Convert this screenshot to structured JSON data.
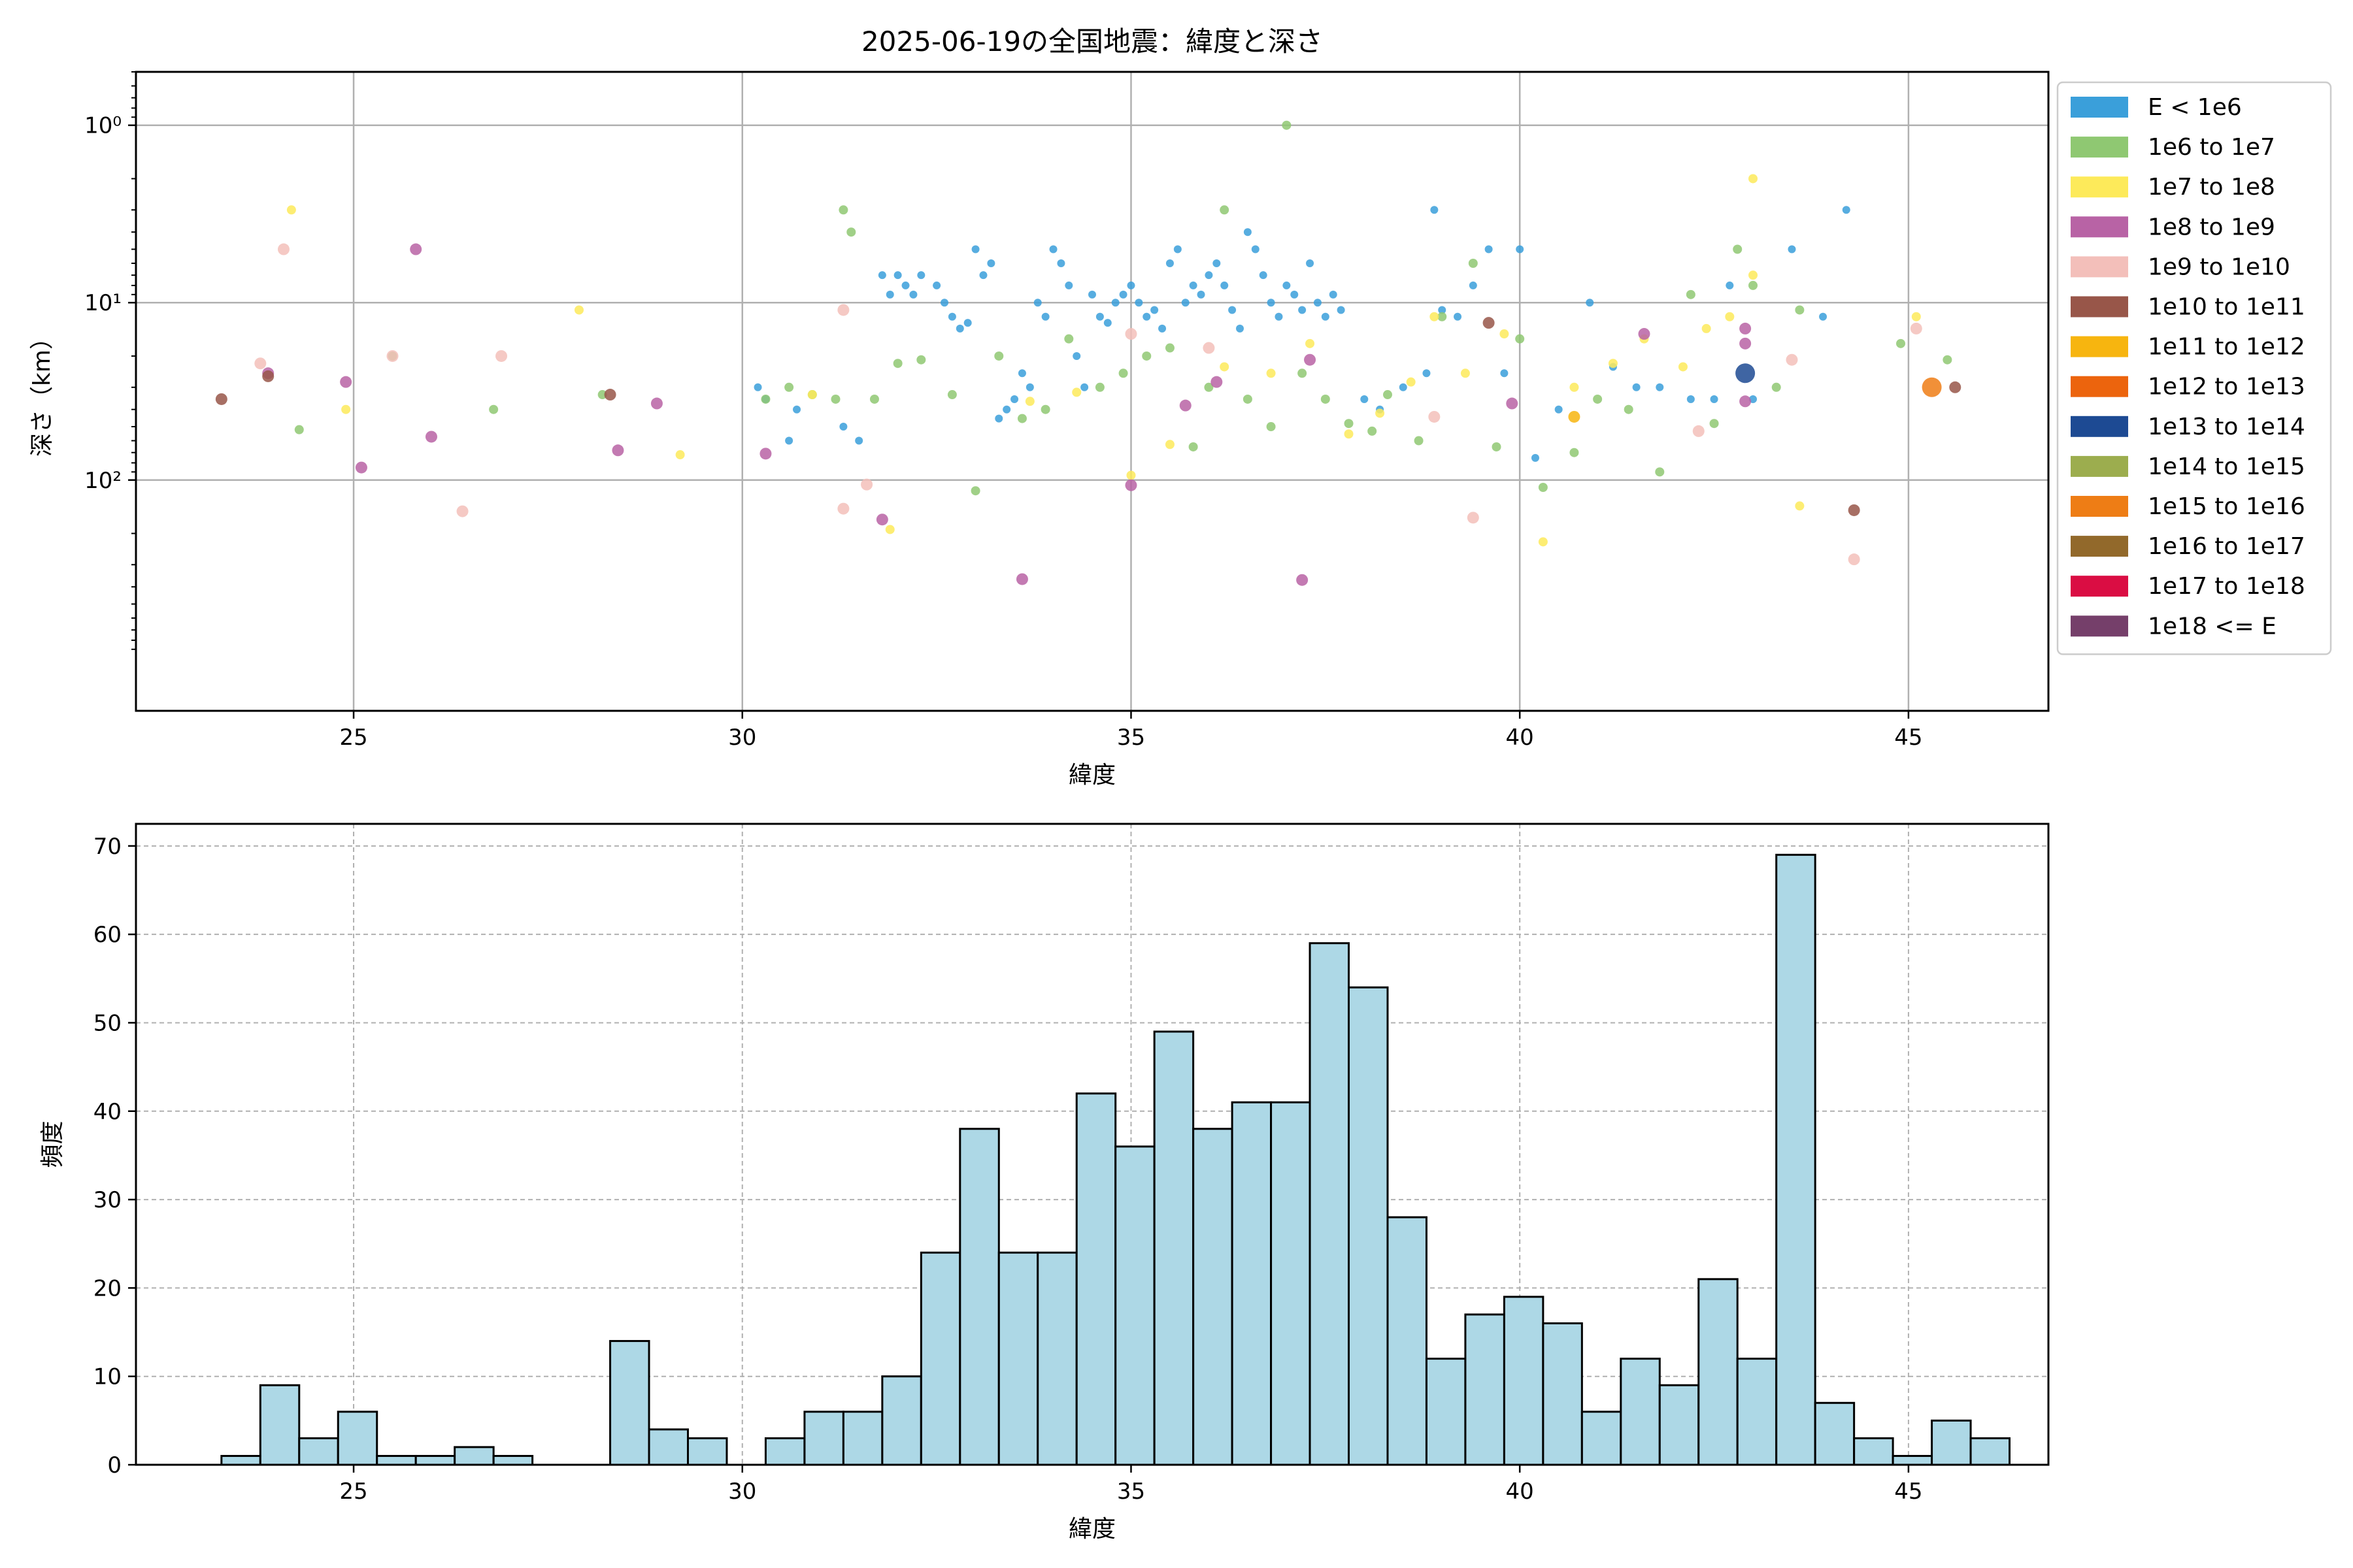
{
  "chart_data": [
    {
      "type": "scatter",
      "title": "2025-06-19の全国地震：緯度と深さ",
      "xlabel": "緯度",
      "ylabel": "深さ（km）",
      "xlim": [
        22.2,
        46.8
      ],
      "ylim": [
        2000,
        0.5
      ],
      "yscale": "log",
      "y_inverted": true,
      "grid": true,
      "legend_position": "outside-right",
      "xticks": [
        25,
        30,
        35,
        40,
        45
      ],
      "yticks": [
        {
          "value": 1,
          "label": "10⁰"
        },
        {
          "value": 10,
          "label": "10¹"
        },
        {
          "value": 100,
          "label": "10²"
        }
      ],
      "legend": [
        {
          "label": "E < 1e6",
          "color": "#3a9fda"
        },
        {
          "label": "1e6 to 1e7",
          "color": "#8fc872"
        },
        {
          "label": "1e7 to 1e8",
          "color": "#fdea5a"
        },
        {
          "label": "1e8 to 1e9",
          "color": "#b863a5"
        },
        {
          "label": "1e9 to 1e10",
          "color": "#f3bfba"
        },
        {
          "label": "1e10 to 1e11",
          "color": "#985649"
        },
        {
          "label": "1e11 to 1e12",
          "color": "#f7b50f"
        },
        {
          "label": "1e12 to 1e13",
          "color": "#ec640d"
        },
        {
          "label": "1e13 to 1e14",
          "color": "#1d4a93"
        },
        {
          "label": "1e14 to 1e15",
          "color": "#9cad4e"
        },
        {
          "label": "1e15 to 1e16",
          "color": "#ee7d15"
        },
        {
          "label": "1e16 to 1e17",
          "color": "#92692b"
        },
        {
          "label": "1e17 to 1e18",
          "color": "#da0d43"
        },
        {
          "label": "1e18 <= E",
          "color": "#753f6a"
        }
      ],
      "series": [
        {
          "name": "E < 1e6",
          "color": "#3a9fda",
          "points": [
            [
              30.2,
              30
            ],
            [
              30.3,
              35
            ],
            [
              30.6,
              60
            ],
            [
              30.7,
              40
            ],
            [
              31.3,
              50
            ],
            [
              31.5,
              60
            ],
            [
              31.8,
              7
            ],
            [
              31.9,
              9
            ],
            [
              32.0,
              7
            ],
            [
              32.1,
              8
            ],
            [
              32.2,
              9
            ],
            [
              32.3,
              7
            ],
            [
              32.5,
              8
            ],
            [
              32.6,
              10
            ],
            [
              32.7,
              12
            ],
            [
              32.8,
              14
            ],
            [
              32.9,
              13
            ],
            [
              33.0,
              5
            ],
            [
              33.1,
              7
            ],
            [
              33.2,
              6
            ],
            [
              33.3,
              45
            ],
            [
              33.4,
              40
            ],
            [
              33.5,
              35
            ],
            [
              33.6,
              25
            ],
            [
              33.7,
              30
            ],
            [
              33.8,
              10
            ],
            [
              33.9,
              12
            ],
            [
              34.0,
              5
            ],
            [
              34.1,
              6
            ],
            [
              34.2,
              8
            ],
            [
              34.3,
              20
            ],
            [
              34.4,
              30
            ],
            [
              34.5,
              9
            ],
            [
              34.6,
              12
            ],
            [
              34.7,
              13
            ],
            [
              34.8,
              10
            ],
            [
              34.9,
              9
            ],
            [
              35.0,
              8
            ],
            [
              35.1,
              10
            ],
            [
              35.2,
              12
            ],
            [
              35.3,
              11
            ],
            [
              35.4,
              14
            ],
            [
              35.5,
              6
            ],
            [
              35.6,
              5
            ],
            [
              35.7,
              10
            ],
            [
              35.8,
              8
            ],
            [
              35.9,
              9
            ],
            [
              36.0,
              7
            ],
            [
              36.1,
              6
            ],
            [
              36.2,
              8
            ],
            [
              36.3,
              11
            ],
            [
              36.4,
              14
            ],
            [
              36.5,
              4
            ],
            [
              36.6,
              5
            ],
            [
              36.7,
              7
            ],
            [
              36.8,
              10
            ],
            [
              36.9,
              12
            ],
            [
              37.0,
              8
            ],
            [
              37.1,
              9
            ],
            [
              37.2,
              11
            ],
            [
              37.3,
              6
            ],
            [
              37.4,
              10
            ],
            [
              37.5,
              12
            ],
            [
              37.6,
              9
            ],
            [
              37.7,
              11
            ],
            [
              38.0,
              35
            ],
            [
              38.2,
              40
            ],
            [
              38.5,
              30
            ],
            [
              38.8,
              25
            ],
            [
              38.9,
              3
            ],
            [
              39.0,
              11
            ],
            [
              39.2,
              12
            ],
            [
              39.4,
              8
            ],
            [
              39.6,
              5
            ],
            [
              39.8,
              25
            ],
            [
              40.0,
              5
            ],
            [
              40.2,
              75
            ],
            [
              40.5,
              40
            ],
            [
              40.9,
              10
            ],
            [
              41.2,
              23
            ],
            [
              41.5,
              30
            ],
            [
              41.8,
              30
            ],
            [
              42.2,
              35
            ],
            [
              42.5,
              35
            ],
            [
              42.7,
              8
            ],
            [
              43.0,
              35
            ],
            [
              43.5,
              5
            ],
            [
              43.9,
              12
            ],
            [
              44.2,
              3
            ]
          ]
        },
        {
          "name": "1e6 to 1e7",
          "color": "#8fc872",
          "points": [
            [
              24.3,
              52
            ],
            [
              25.5,
              20
            ],
            [
              26.8,
              40
            ],
            [
              28.2,
              33
            ],
            [
              30.3,
              35
            ],
            [
              30.6,
              30
            ],
            [
              30.9,
              33
            ],
            [
              31.2,
              35
            ],
            [
              31.3,
              3
            ],
            [
              31.4,
              4
            ],
            [
              31.7,
              35
            ],
            [
              32.0,
              22
            ],
            [
              32.3,
              21
            ],
            [
              32.7,
              33
            ],
            [
              33.0,
              115
            ],
            [
              33.3,
              20
            ],
            [
              33.6,
              45
            ],
            [
              33.9,
              40
            ],
            [
              34.2,
              16
            ],
            [
              34.6,
              30
            ],
            [
              34.9,
              25
            ],
            [
              35.2,
              20
            ],
            [
              35.5,
              18
            ],
            [
              35.8,
              65
            ],
            [
              36.0,
              30
            ],
            [
              36.2,
              3
            ],
            [
              36.5,
              35
            ],
            [
              36.8,
              50
            ],
            [
              37.0,
              1.0
            ],
            [
              37.2,
              25
            ],
            [
              37.5,
              35
            ],
            [
              37.8,
              48
            ],
            [
              38.1,
              53
            ],
            [
              38.3,
              33
            ],
            [
              38.7,
              60
            ],
            [
              39.0,
              12
            ],
            [
              39.4,
              6
            ],
            [
              39.7,
              65
            ],
            [
              40.0,
              16
            ],
            [
              40.3,
              110
            ],
            [
              40.7,
              70
            ],
            [
              41.0,
              35
            ],
            [
              41.4,
              40
            ],
            [
              41.8,
              90
            ],
            [
              42.2,
              9
            ],
            [
              42.5,
              48
            ],
            [
              42.8,
              5
            ],
            [
              43.0,
              8
            ],
            [
              43.3,
              30
            ],
            [
              43.6,
              11
            ],
            [
              44.9,
              17
            ],
            [
              45.5,
              21
            ]
          ]
        },
        {
          "name": "1e7 to 1e8",
          "color": "#fdea5a",
          "points": [
            [
              24.2,
              3
            ],
            [
              24.9,
              40
            ],
            [
              27.9,
              11
            ],
            [
              29.2,
              72
            ],
            [
              30.9,
              33
            ],
            [
              31.9,
              190
            ],
            [
              33.7,
              36
            ],
            [
              34.3,
              32
            ],
            [
              35.0,
              94
            ],
            [
              35.5,
              63
            ],
            [
              36.2,
              23
            ],
            [
              36.8,
              25
            ],
            [
              37.3,
              17
            ],
            [
              37.8,
              55
            ],
            [
              38.2,
              42
            ],
            [
              38.6,
              28
            ],
            [
              38.9,
              12
            ],
            [
              39.3,
              25
            ],
            [
              39.8,
              15
            ],
            [
              40.3,
              223
            ],
            [
              40.7,
              30
            ],
            [
              41.2,
              22
            ],
            [
              41.6,
              16
            ],
            [
              42.1,
              23
            ],
            [
              42.4,
              14
            ],
            [
              42.7,
              12
            ],
            [
              43.0,
              2
            ],
            [
              43.0,
              7
            ],
            [
              43.6,
              140
            ],
            [
              45.1,
              12
            ]
          ]
        },
        {
          "name": "1e8 to 1e9",
          "color": "#b863a5",
          "points": [
            [
              23.9,
              25
            ],
            [
              24.9,
              28
            ],
            [
              25.1,
              85
            ],
            [
              25.8,
              5
            ],
            [
              26.0,
              57
            ],
            [
              28.4,
              68
            ],
            [
              28.9,
              37
            ],
            [
              30.3,
              71
            ],
            [
              31.8,
              167
            ],
            [
              33.6,
              362
            ],
            [
              35.0,
              107
            ],
            [
              35.7,
              38
            ],
            [
              36.1,
              28
            ],
            [
              37.2,
              366
            ],
            [
              37.3,
              21
            ],
            [
              39.9,
              37
            ],
            [
              41.6,
              15
            ],
            [
              42.9,
              36
            ],
            [
              42.9,
              14
            ],
            [
              42.9,
              17
            ]
          ]
        },
        {
          "name": "1e9 to 1e10",
          "color": "#f3bfba",
          "points": [
            [
              23.8,
              22
            ],
            [
              24.1,
              5
            ],
            [
              25.5,
              20
            ],
            [
              26.4,
              150
            ],
            [
              26.9,
              20
            ],
            [
              31.3,
              11
            ],
            [
              31.3,
              145
            ],
            [
              31.6,
              106
            ],
            [
              35.0,
              15
            ],
            [
              36.0,
              18
            ],
            [
              38.9,
              44
            ],
            [
              39.4,
              163
            ],
            [
              42.3,
              53
            ],
            [
              43.5,
              21
            ],
            [
              44.3,
              280
            ],
            [
              45.1,
              14
            ]
          ]
        },
        {
          "name": "1e10 to 1e11",
          "color": "#985649",
          "points": [
            [
              23.3,
              35
            ],
            [
              23.9,
              26
            ],
            [
              28.3,
              33
            ],
            [
              39.6,
              13
            ],
            [
              44.3,
              148
            ],
            [
              45.6,
              30
            ]
          ]
        },
        {
          "name": "1e11 to 1e12",
          "color": "#f7b50f",
          "points": [
            [
              40.7,
              44
            ]
          ]
        },
        {
          "name": "1e12 to 1e13",
          "color": "#ec640d",
          "points": []
        },
        {
          "name": "1e13 to 1e14",
          "color": "#1d4a93",
          "points": [
            [
              42.9,
              25
            ]
          ]
        },
        {
          "name": "1e14 to 1e15",
          "color": "#9cad4e",
          "points": []
        },
        {
          "name": "1e15 to 1e16",
          "color": "#ee7d15",
          "points": [
            [
              45.3,
              30
            ]
          ]
        },
        {
          "name": "1e16 to 1e17",
          "color": "#92692b",
          "points": []
        },
        {
          "name": "1e17 to 1e18",
          "color": "#da0d43",
          "points": []
        },
        {
          "name": "1e18 <= E",
          "color": "#753f6a",
          "points": []
        }
      ]
    },
    {
      "type": "bar",
      "xlabel": "緯度",
      "ylabel": "頻度",
      "xlim": [
        22.2,
        46.8
      ],
      "ylim": [
        0,
        72.5
      ],
      "grid": true,
      "bar_color": "#add8e6",
      "xticks": [
        25,
        30,
        35,
        40,
        45
      ],
      "yticks": [
        0,
        10,
        20,
        30,
        40,
        50,
        60,
        70
      ],
      "bin_start": 23.3,
      "bin_width": 0.5,
      "values": [
        1,
        9,
        3,
        6,
        1,
        1,
        2,
        1,
        0,
        0,
        14,
        4,
        3,
        0,
        3,
        6,
        6,
        10,
        24,
        38,
        24,
        24,
        42,
        36,
        49,
        38,
        41,
        41,
        59,
        54,
        28,
        12,
        17,
        19,
        16,
        6,
        12,
        9,
        21,
        12,
        69,
        7,
        3,
        1,
        5,
        3
      ]
    }
  ]
}
